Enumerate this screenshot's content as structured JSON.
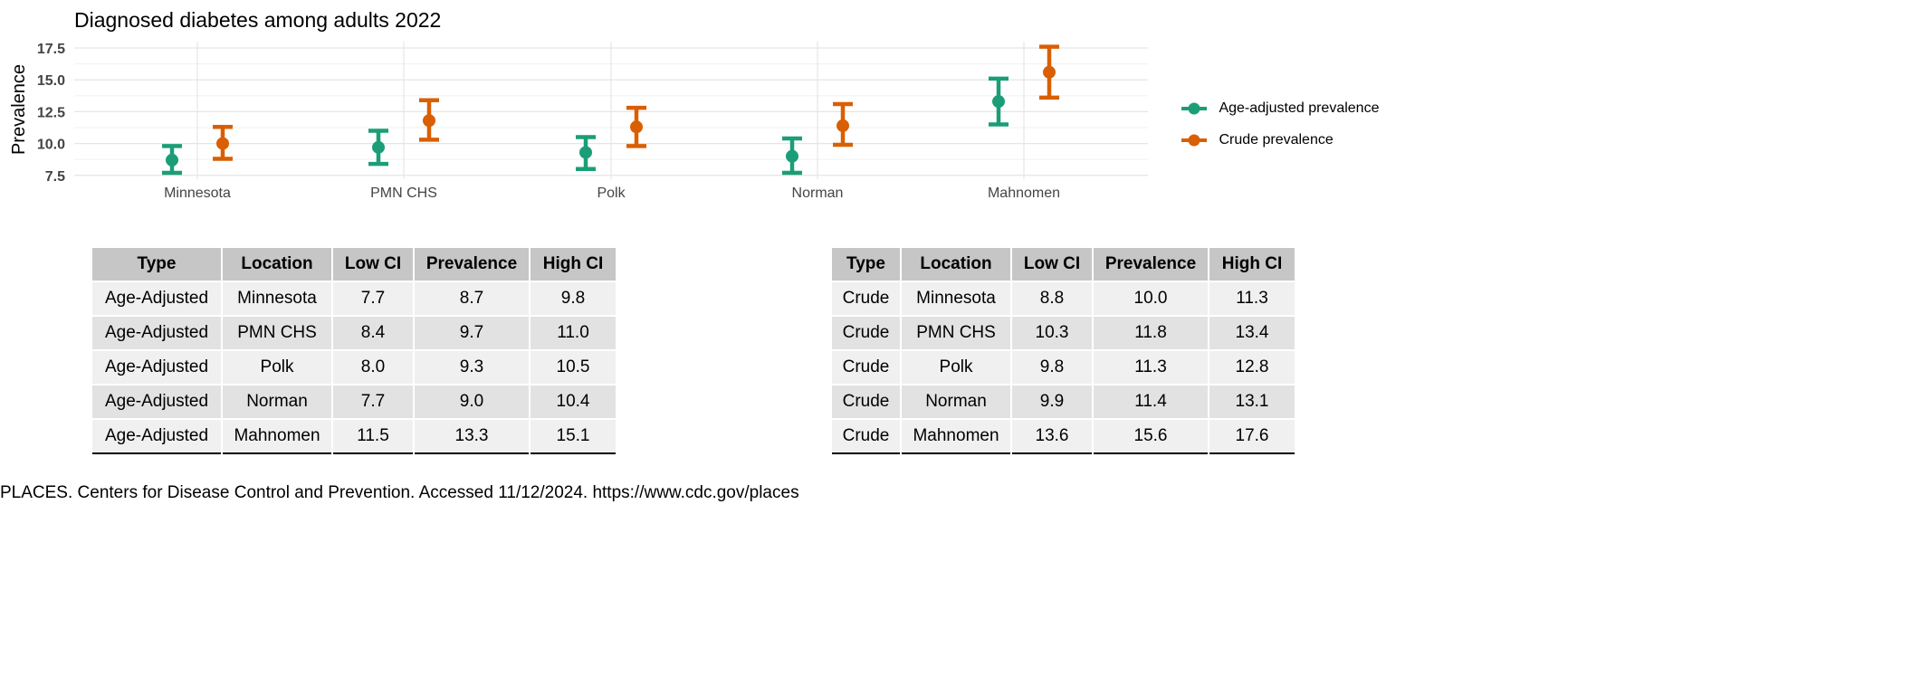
{
  "chart_data": {
    "type": "scatter",
    "title": "Diagnosed diabetes among adults 2022",
    "xlabel": "",
    "ylabel": "Prevalence",
    "categories": [
      "Minnesota",
      "PMN CHS",
      "Polk",
      "Norman",
      "Mahnomen"
    ],
    "ylim": [
      7.2,
      18.0
    ],
    "yticks": [
      "7.5",
      "10.0",
      "12.5",
      "15.0",
      "17.5"
    ],
    "ytick_values": [
      7.5,
      10.0,
      12.5,
      15.0,
      17.5
    ],
    "grid": true,
    "legend_position": "right",
    "series": [
      {
        "name": "Age-adjusted prevalence",
        "color": "#1b9e77",
        "values": [
          8.7,
          9.7,
          9.3,
          9.0,
          13.3
        ],
        "low": [
          7.7,
          8.4,
          8.0,
          7.7,
          11.5
        ],
        "high": [
          9.8,
          11.0,
          10.5,
          10.4,
          15.1
        ]
      },
      {
        "name": "Crude prevalence",
        "color": "#d95f02",
        "values": [
          10.0,
          11.8,
          11.3,
          11.4,
          15.6
        ],
        "low": [
          8.8,
          10.3,
          9.8,
          9.9,
          13.6
        ],
        "high": [
          11.3,
          13.4,
          12.8,
          13.1,
          17.6
        ]
      }
    ]
  },
  "tables": {
    "headers": [
      "Type",
      "Location",
      "Low CI",
      "Prevalence",
      "High CI"
    ],
    "age_adjusted": [
      [
        "Age-Adjusted",
        "Minnesota",
        "7.7",
        "8.7",
        "9.8"
      ],
      [
        "Age-Adjusted",
        "PMN CHS",
        "8.4",
        "9.7",
        "11.0"
      ],
      [
        "Age-Adjusted",
        "Polk",
        "8.0",
        "9.3",
        "10.5"
      ],
      [
        "Age-Adjusted",
        "Norman",
        "7.7",
        "9.0",
        "10.4"
      ],
      [
        "Age-Adjusted",
        "Mahnomen",
        "11.5",
        "13.3",
        "15.1"
      ]
    ],
    "crude": [
      [
        "Crude",
        "Minnesota",
        "8.8",
        "10.0",
        "11.3"
      ],
      [
        "Crude",
        "PMN CHS",
        "10.3",
        "11.8",
        "13.4"
      ],
      [
        "Crude",
        "Polk",
        "9.8",
        "11.3",
        "12.8"
      ],
      [
        "Crude",
        "Norman",
        "9.9",
        "11.4",
        "13.1"
      ],
      [
        "Crude",
        "Mahnomen",
        "13.6",
        "15.6",
        "17.6"
      ]
    ]
  },
  "source_note": "PLACES. Centers for Disease Control and Prevention. Accessed 11/12/2024. https://www.cdc.gov/places"
}
